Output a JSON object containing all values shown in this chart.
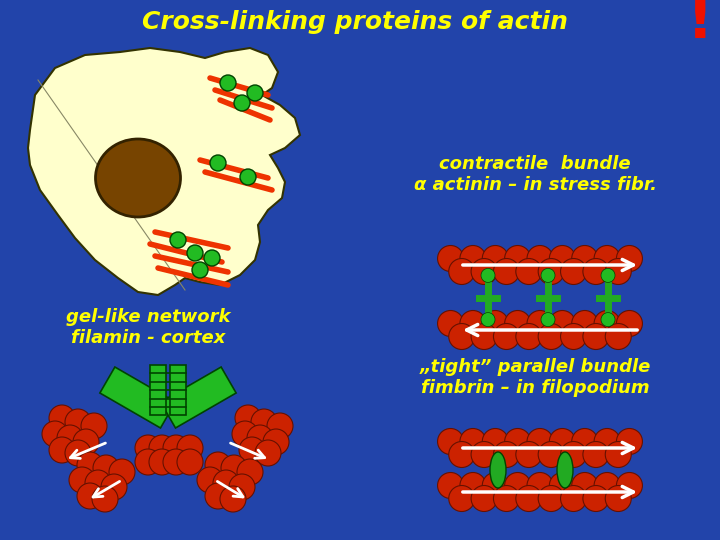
{
  "title": "Cross-linking proteins of actin",
  "title_color": "#FFFF00",
  "title_fontsize": 18,
  "bg_color": "#2244AA",
  "exclamation": "!",
  "exclamation_color": "#EE1100",
  "text_color": "#FFFF00",
  "contractile_label": "contractile  bundle\nα actinin – in stress fibr.",
  "gellike_label": "gel-like network\nfilamin - cortex",
  "tight_label": "„tight” parallel bundle\nfimbrin – in filopodium",
  "actin_red": "#CC2200",
  "actin_red_edge": "#661100",
  "actin_green": "#22AA22",
  "cell_fill": "#FFFFCC",
  "cell_edge": "#333300",
  "nucleus_fill": "#774400",
  "nucleus_edge": "#332200",
  "fiber_red": "#EE3300",
  "green_dot": "#22BB22",
  "arrow_color": "#FFFFFF",
  "filamin_green": "#22BB22",
  "filamin_edge": "#004400"
}
